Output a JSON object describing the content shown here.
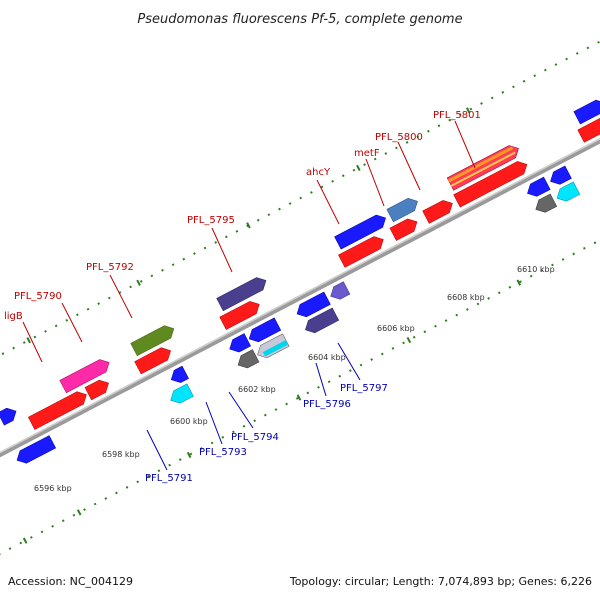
{
  "title": "Pseudomonas fluorescens Pf-5, complete genome",
  "footer": {
    "accession": "Accession: NC_004129",
    "summary": "Topology: circular; Length: 7,074,893 bp; Genes: 6,226"
  },
  "colors": {
    "backbone": "#9a9a9a",
    "top_label": "#c00000",
    "bottom_label": "#0000b4",
    "tick": "#2e7d1e"
  },
  "ticks": [
    "6596 kbp",
    "6598 kbp",
    "6600 kbp",
    "6602 kbp",
    "6604 kbp",
    "6606 kbp",
    "6608 kbp",
    "6610 kbp"
  ],
  "top_labels": [
    "ligB",
    "PFL_5790",
    "PFL_5792",
    "PFL_5795",
    "ahcY",
    "metF",
    "PFL_5800",
    "PFL_5801"
  ],
  "bottom_labels": [
    "PFL_5791",
    "PFL_5793",
    "PFL_5794",
    "PFL_5796",
    "PFL_5797"
  ]
}
